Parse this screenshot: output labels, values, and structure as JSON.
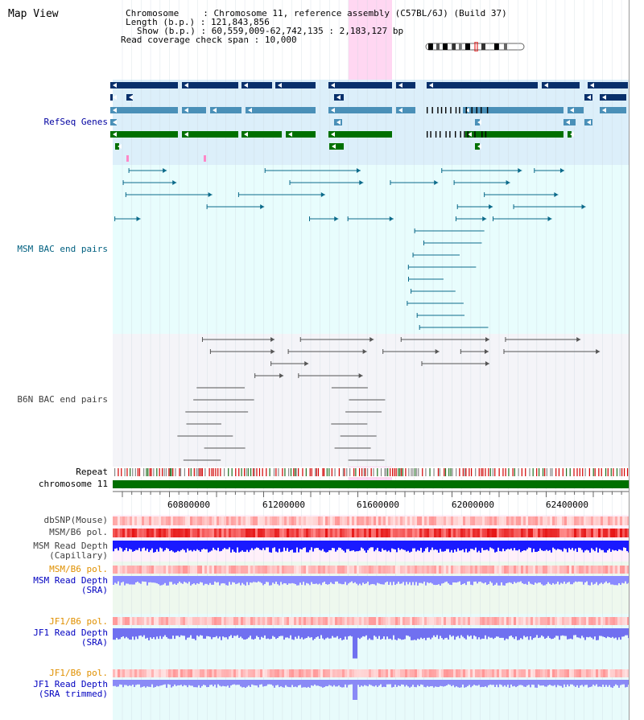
{
  "view": {
    "title": "Map View",
    "chromosome_key": "Chromosome",
    "chromosome_value": "Chromosome 11, reference assembly (C57BL/6J) (Build 37)",
    "length_key": "Length (b.p.)",
    "length_value": "121,843,856",
    "show_key": "Show (b.p.)",
    "show_value": "60,559,009-62,742,135 : 2,183,127 bp",
    "coverage_key": "Read coverage check span",
    "coverage_value": "10,000"
  },
  "tracks": {
    "refseq": {
      "label": "RefSeq Genes",
      "color": "#0000a0"
    },
    "msm_bac": {
      "label": "MSM BAC end pairs",
      "color": "#006080"
    },
    "b6n_bac": {
      "label": "B6N BAC end pairs",
      "color": "#404040"
    },
    "repeat": {
      "label": "Repeat",
      "color": "#000000"
    },
    "chromosome": {
      "label": "chromosome 11",
      "color": "#000000"
    },
    "dbsnp": {
      "label": "dbSNP(Mouse)",
      "color": "#404040"
    },
    "msm_b6_pol_1": {
      "label": "MSM/B6 pol.",
      "color": "#404040"
    },
    "msm_depth_cap": {
      "label": "MSM Read Depth\n(Capillary)",
      "color": "#404040"
    },
    "msm_b6_pol_2": {
      "label": "MSM/B6 pol.",
      "color": "#e09000"
    },
    "msm_depth_sra": {
      "label": "MSM Read Depth\n(SRA)",
      "color": "#0000c0"
    },
    "jf1_b6_pol_1": {
      "label": "JF1/B6 pol.",
      "color": "#e09000"
    },
    "jf1_depth_sra": {
      "label": "JF1 Read Depth\n(SRA)",
      "color": "#0000c0"
    },
    "jf1_b6_pol_2": {
      "label": "JF1/B6 pol.",
      "color": "#e09000"
    },
    "jf1_depth_trim": {
      "label": "JF1 Read Depth\n(SRA trimmed)",
      "color": "#0000c0"
    }
  },
  "axis": {
    "ticks": [
      "60800000",
      "61200000",
      "61600000",
      "62000000",
      "62400000"
    ]
  }
}
